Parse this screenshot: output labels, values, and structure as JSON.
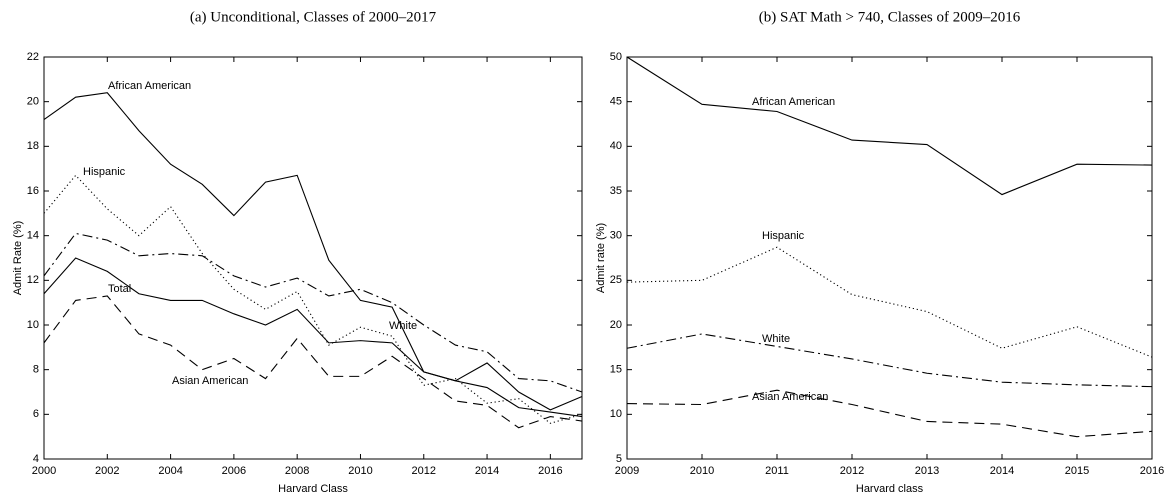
{
  "chart_data": [
    {
      "type": "line",
      "title": "(a) Unconditional, Classes of 2000–2017",
      "xlabel": "Harvard Class",
      "ylabel": "Admit Rate (%)",
      "x": [
        2000,
        2001,
        2002,
        2003,
        2004,
        2005,
        2006,
        2007,
        2008,
        2009,
        2010,
        2011,
        2012,
        2013,
        2014,
        2015,
        2016,
        2017
      ],
      "xlim": [
        2000,
        2017
      ],
      "xticks": [
        2000,
        2002,
        2004,
        2006,
        2008,
        2010,
        2012,
        2014,
        2016
      ],
      "ylim": [
        4,
        22
      ],
      "yticks": [
        4,
        6,
        8,
        10,
        12,
        14,
        16,
        18,
        20,
        22
      ],
      "series": [
        {
          "name": "African American",
          "color": "#000000",
          "linestyle": "solid",
          "values": [
            19.2,
            20.2,
            20.4,
            18.7,
            17.2,
            16.3,
            14.9,
            16.4,
            16.7,
            12.9,
            11.1,
            10.8,
            7.9,
            7.5,
            8.3,
            7.0,
            6.2,
            6.8
          ]
        },
        {
          "name": "Hispanic",
          "color": "#000000",
          "linestyle": "dotted",
          "values": [
            15.0,
            16.7,
            15.2,
            14.0,
            15.3,
            13.2,
            11.6,
            10.7,
            11.5,
            9.1,
            9.9,
            9.5,
            7.3,
            7.6,
            6.5,
            6.7,
            5.6,
            6.0
          ]
        },
        {
          "name": "Total",
          "color": "#000000",
          "linestyle": "solid",
          "values": [
            11.4,
            13.0,
            12.4,
            11.4,
            11.1,
            11.1,
            10.5,
            10.0,
            10.7,
            9.2,
            9.3,
            9.2,
            7.9,
            7.5,
            7.2,
            6.3,
            6.1,
            5.9
          ]
        },
        {
          "name": "White",
          "color": "#000000",
          "linestyle": "dashdot",
          "values": [
            12.2,
            14.1,
            13.8,
            13.1,
            13.2,
            13.1,
            12.2,
            11.7,
            12.1,
            11.3,
            11.6,
            11.0,
            10.0,
            9.1,
            8.8,
            7.6,
            7.5,
            7.0
          ]
        },
        {
          "name": "Asian American",
          "color": "#000000",
          "linestyle": "dashed",
          "values": [
            9.2,
            11.1,
            11.3,
            9.6,
            9.1,
            8.0,
            8.5,
            7.6,
            9.4,
            7.7,
            7.7,
            8.6,
            7.6,
            6.6,
            6.4,
            5.4,
            5.9,
            5.7
          ]
        }
      ]
    },
    {
      "type": "line",
      "title": "(b) SAT Math > 740, Classes of 2009–2016",
      "xlabel": "Harvard class",
      "ylabel": "Admit rate (%)",
      "x": [
        2009,
        2010,
        2011,
        2012,
        2013,
        2014,
        2015,
        2016
      ],
      "xlim": [
        2009,
        2016
      ],
      "xticks": [
        2009,
        2010,
        2011,
        2012,
        2013,
        2014,
        2015,
        2016
      ],
      "ylim": [
        5,
        50
      ],
      "yticks": [
        5,
        10,
        15,
        20,
        25,
        30,
        35,
        40,
        45,
        50
      ],
      "series": [
        {
          "name": "African American",
          "color": "#000000",
          "linestyle": "solid",
          "values": [
            50,
            44.7,
            43.9,
            40.7,
            40.2,
            34.6,
            38.0,
            37.9
          ]
        },
        {
          "name": "Hispanic",
          "color": "#000000",
          "linestyle": "dotted",
          "values": [
            24.8,
            25.0,
            28.7,
            23.4,
            21.5,
            17.4,
            19.8,
            16.4
          ]
        },
        {
          "name": "White",
          "color": "#000000",
          "linestyle": "dashdot",
          "values": [
            17.4,
            19.0,
            17.6,
            16.2,
            14.6,
            13.6,
            13.3,
            13.1
          ]
        },
        {
          "name": "Asian American",
          "color": "#000000",
          "linestyle": "dashed",
          "values": [
            11.2,
            11.1,
            12.7,
            11.1,
            9.2,
            8.9,
            7.5,
            8.1
          ]
        }
      ]
    }
  ]
}
